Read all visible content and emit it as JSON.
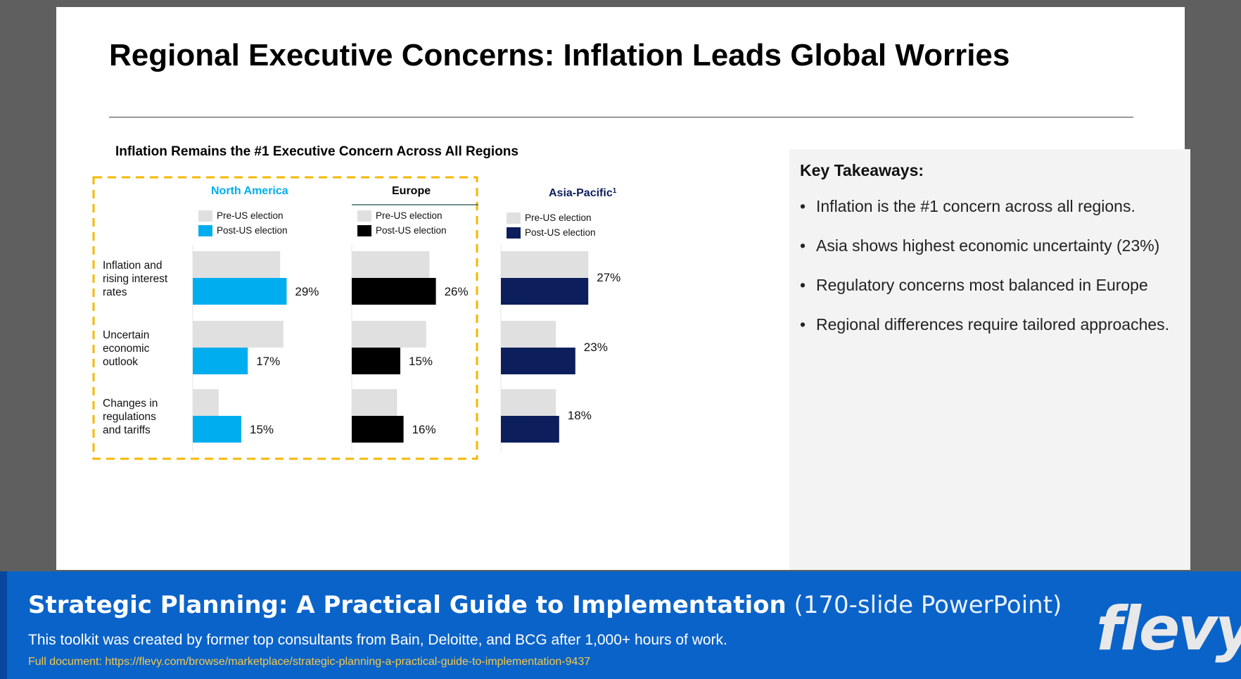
{
  "slide": {
    "title": "Regional Executive Concerns: Inflation Leads Global Worries",
    "chart_title": "Inflation Remains the #1 Executive Concern Across All Regions"
  },
  "chart_data": {
    "type": "bar",
    "orientation": "horizontal",
    "title": "Inflation Remains the #1 Executive Concern Across All Regions",
    "categories": [
      "Inflation and rising interest rates",
      "Uncertain economic outlook",
      "Changes in regulations and tariffs"
    ],
    "category_lines": [
      [
        "Inflation and",
        "rising interest",
        "rates"
      ],
      [
        "Uncertain",
        "economic",
        "outlook"
      ],
      [
        "Changes in",
        "regulations",
        "and tariffs"
      ]
    ],
    "xlim": [
      0,
      30
    ],
    "value_suffix": "%",
    "grid": false,
    "highlight": "dashed box around North America and Europe",
    "regions": [
      {
        "name": "North America",
        "legend": [
          "Pre-US election",
          "Post-US election"
        ],
        "colors": {
          "pre": "#e0e0e0",
          "post": "#00aeef",
          "title": "#00aeef"
        },
        "series": [
          {
            "name": "Pre-US election",
            "values": [
              27,
              28,
              8
            ]
          },
          {
            "name": "Post-US election",
            "values": [
              29,
              17,
              15
            ]
          }
        ],
        "labels": [
          "29%",
          "17%",
          "15%"
        ]
      },
      {
        "name": "Europe",
        "legend": [
          "Pre-US election",
          "Post-US election"
        ],
        "colors": {
          "pre": "#e0e0e0",
          "post": "#000000",
          "title": "#000000"
        },
        "series": [
          {
            "name": "Pre-US election",
            "values": [
              24,
              23,
              14
            ]
          },
          {
            "name": "Post-US election",
            "values": [
              26,
              15,
              16
            ]
          }
        ],
        "labels": [
          "26%",
          "15%",
          "16%"
        ]
      },
      {
        "name": "Asia-Pacific",
        "footnote": "1",
        "legend": [
          "Pre-US election",
          "Post-US election"
        ],
        "colors": {
          "pre": "#e0e0e0",
          "post": "#0c1f5c",
          "title": "#0c1f5c"
        },
        "series": [
          {
            "name": "Pre-US election",
            "values": [
              27,
              17,
              17
            ]
          },
          {
            "name": "Post-US election",
            "values": [
              27,
              23,
              18
            ]
          }
        ],
        "labels": [
          "27%",
          "23%",
          "18%"
        ]
      }
    ]
  },
  "takeaways": {
    "title": "Key Takeaways:",
    "items": [
      "Inflation is the #1 concern across all regions.",
      "Asia shows highest economic uncertainty (23%)",
      "Regulatory concerns most balanced in Europe",
      "Regional differences require tailored approaches."
    ]
  },
  "footer": {
    "heading": "Strategic Planning: A Practical Guide to Implementation",
    "heading_suffix": "(170-slide PowerPoint)",
    "description": "This toolkit was created by former top consultants from Bain, Deloitte, and BCG after 1,000+ hours of work.",
    "link": "Full document: https://flevy.com/browse/marketplace/strategic-planning-a-practical-guide-to-implementation-9437",
    "logo": "flevy"
  }
}
